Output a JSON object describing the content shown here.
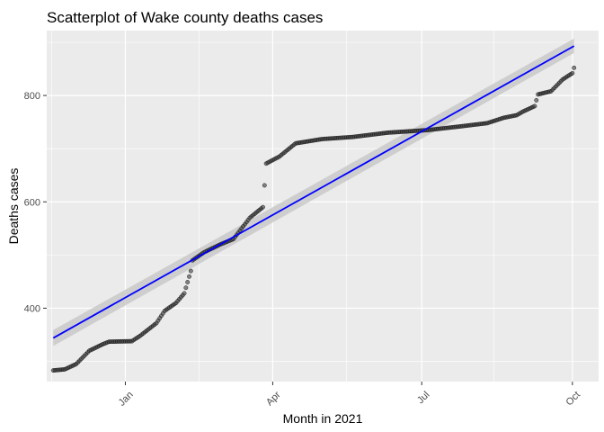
{
  "chart_data": {
    "type": "scatter",
    "title": "Scatterplot of  Wake county deaths cases",
    "xlabel": "Month in 2021",
    "ylabel": "Deaths cases",
    "x_axis_type": "date",
    "xlim": [
      "2020-11-14",
      "2021-10-17"
    ],
    "ylim": [
      262,
      922
    ],
    "x_ticks": [
      {
        "date": "2021-01-01",
        "label": "Jan"
      },
      {
        "date": "2021-04-01",
        "label": "Apr"
      },
      {
        "date": "2021-07-01",
        "label": "Jul"
      },
      {
        "date": "2021-10-01",
        "label": "Oct"
      }
    ],
    "y_ticks": [
      400,
      600,
      800
    ],
    "grid": true,
    "legend": "none",
    "point_color": "#000000",
    "point_fill": "#3a3a3a",
    "trend_color": "#0000ff",
    "band_color": "#c9c9c9",
    "panel_color": "#ebebeb",
    "grid_color": "#ffffff",
    "trend_line": {
      "method": "linear",
      "start": {
        "x": "2020-11-18",
        "y": 344,
        "lo": 329,
        "hi": 359
      },
      "end": {
        "x": "2021-10-02",
        "y": 893,
        "lo": 880,
        "hi": 907
      }
    },
    "series_anchors": [
      [
        "2020-11-18",
        283
      ],
      [
        "2020-11-25",
        285
      ],
      [
        "2020-12-02",
        295
      ],
      [
        "2020-12-10",
        320
      ],
      [
        "2020-12-18",
        332
      ],
      [
        "2020-12-22",
        337
      ],
      [
        "2021-01-05",
        338
      ],
      [
        "2021-01-10",
        348
      ],
      [
        "2021-01-20",
        372
      ],
      [
        "2021-01-25",
        395
      ],
      [
        "2021-02-01",
        410
      ],
      [
        "2021-02-06",
        428
      ],
      [
        "2021-02-10",
        470
      ],
      [
        "2021-02-11",
        490
      ],
      [
        "2021-02-18",
        505
      ],
      [
        "2021-02-28",
        520
      ],
      [
        "2021-03-08",
        530
      ],
      [
        "2021-03-18",
        570
      ],
      [
        "2021-03-26",
        590
      ],
      [
        "2021-03-28",
        672
      ],
      [
        "2021-04-05",
        685
      ],
      [
        "2021-04-15",
        710
      ],
      [
        "2021-05-01",
        718
      ],
      [
        "2021-05-20",
        722
      ],
      [
        "2021-06-10",
        730
      ],
      [
        "2021-07-05",
        735
      ],
      [
        "2021-07-25",
        742
      ],
      [
        "2021-08-10",
        748
      ],
      [
        "2021-08-20",
        758
      ],
      [
        "2021-08-28",
        763
      ],
      [
        "2021-09-01",
        770
      ],
      [
        "2021-09-08",
        780
      ],
      [
        "2021-09-10",
        802
      ],
      [
        "2021-09-18",
        808
      ],
      [
        "2021-09-25",
        830
      ],
      [
        "2021-10-01",
        842
      ],
      [
        "2021-10-02",
        852
      ]
    ]
  }
}
